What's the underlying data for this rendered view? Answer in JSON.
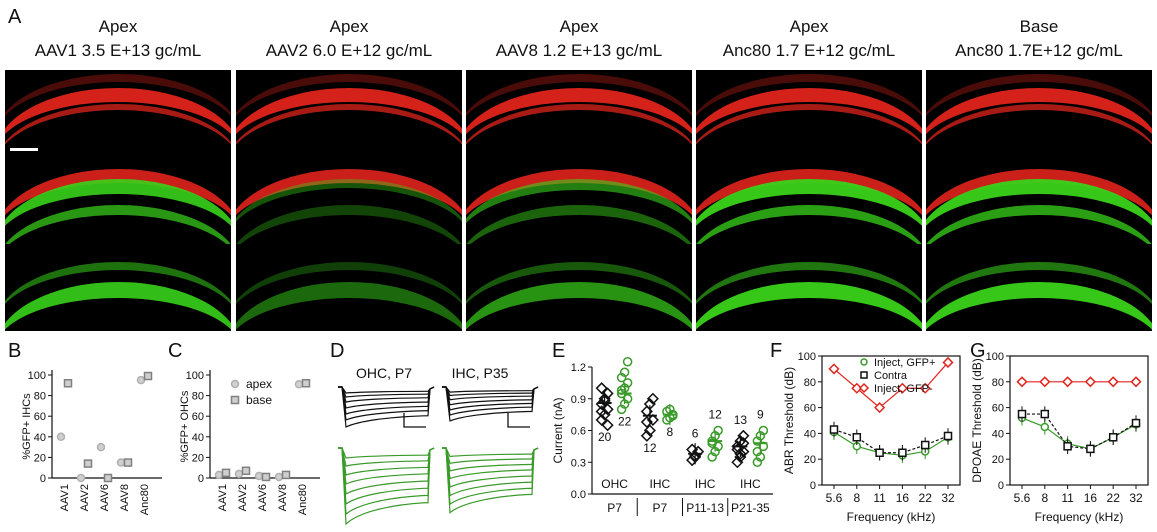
{
  "figure": {
    "panel_letters": {
      "A": "A",
      "B": "B",
      "C": "C",
      "D": "D",
      "E": "E",
      "F": "F",
      "G": "G"
    },
    "panel_a": {
      "columns": [
        {
          "title": "Apex",
          "subtitle": "AAV1 3.5 E+13 gc/mL"
        },
        {
          "title": "Apex",
          "subtitle": "AAV2 6.0 E+12 gc/mL"
        },
        {
          "title": "Apex",
          "subtitle": "AAV8 1.2 E+13 gc/mL"
        },
        {
          "title": "Apex",
          "subtitle": "Anc80 1.7 E+12 gc/mL"
        },
        {
          "title": "Base",
          "subtitle": "Anc80 1.7E+12 gc/mL"
        }
      ],
      "colors": {
        "red": "#e0241c",
        "green": "#39d21b",
        "background": "#000000"
      }
    }
  },
  "chart_data": [
    {
      "panel": "B",
      "type": "scatter",
      "ylabel": "%GFP+ IHCs",
      "ylim": [
        0,
        100
      ],
      "yticks": [
        "0",
        "20",
        "40",
        "60",
        "80",
        "100"
      ],
      "categories": [
        "AAV1",
        "AAV2",
        "AAV6",
        "AAV8",
        "Anc80"
      ],
      "series": [
        {
          "marker": "circle",
          "values": [
            40,
            0,
            30,
            15,
            95
          ]
        },
        {
          "marker": "square",
          "values": [
            92,
            14,
            0,
            15,
            99
          ]
        }
      ]
    },
    {
      "panel": "C",
      "type": "scatter",
      "ylabel": "%GFP+ OHCs",
      "ylim": [
        0,
        100
      ],
      "yticks": [
        "0",
        "20",
        "40",
        "60",
        "80",
        "100"
      ],
      "categories": [
        "AAV1",
        "AAV2",
        "AAV6",
        "AAV8",
        "Anc80"
      ],
      "legend": [
        "apex",
        "base"
      ],
      "series": [
        {
          "name": "apex",
          "marker": "circle",
          "values": [
            3,
            4,
            2,
            1,
            91
          ]
        },
        {
          "name": "base",
          "marker": "square",
          "values": [
            5,
            7,
            1,
            3,
            92
          ]
        }
      ]
    },
    {
      "panel": "D",
      "type": "line",
      "labels": [
        "OHC, P7",
        "IHC, P35"
      ],
      "colors": {
        "top": "#111111",
        "bottom": "#3a9a2a"
      }
    },
    {
      "panel": "E",
      "type": "scatter",
      "ylabel": "Current (nA)",
      "ylim": [
        0,
        1.2
      ],
      "yticks": [
        "0.0",
        "0.3",
        "0.6",
        "0.9",
        "1.2"
      ],
      "groups": [
        {
          "cell": "OHC",
          "age": "P7",
          "n": [
            "20",
            "22"
          ]
        },
        {
          "cell": "IHC",
          "age": "P7",
          "n": [
            "12",
            "8"
          ]
        },
        {
          "cell": "IHC",
          "age": "P11-13",
          "n": [
            "6",
            "12"
          ]
        },
        {
          "cell": "IHC",
          "age": "P21-35",
          "n": [
            "13",
            "9"
          ]
        }
      ],
      "series": [
        {
          "marker": "diamond",
          "color": "#111111",
          "means": [
            0.86,
            0.74,
            0.38,
            0.45
          ],
          "points": [
            [
              0.7,
              0.75,
              0.8,
              0.85,
              0.9,
              0.95,
              1.0,
              0.88,
              0.65,
              0.78
            ],
            [
              0.55,
              0.6,
              0.7,
              0.78,
              0.85,
              0.9,
              0.68
            ],
            [
              0.32,
              0.36,
              0.4,
              0.42,
              0.35
            ],
            [
              0.3,
              0.35,
              0.4,
              0.45,
              0.5,
              0.55,
              0.42,
              0.38,
              0.48
            ]
          ]
        },
        {
          "marker": "circle",
          "color": "#3a9a2a",
          "means": [
            0.95,
            0.75,
            0.5,
            0.48
          ],
          "points": [
            [
              0.8,
              0.85,
              0.9,
              0.95,
              1.0,
              1.05,
              1.1,
              1.15,
              1.25,
              0.98
            ],
            [
              0.7,
              0.72,
              0.75,
              0.78,
              0.8,
              0.74
            ],
            [
              0.35,
              0.4,
              0.45,
              0.5,
              0.55,
              0.6,
              0.48
            ],
            [
              0.3,
              0.35,
              0.45,
              0.5,
              0.55,
              0.6,
              0.4
            ]
          ]
        }
      ]
    },
    {
      "panel": "F",
      "type": "line",
      "ylabel": "ABR Threshold (dB)",
      "xlabel": "Frequency (kHz)",
      "ylim": [
        0,
        100
      ],
      "yticks": [
        "0",
        "20",
        "40",
        "60",
        "80",
        "100"
      ],
      "x": [
        "5.6",
        "8",
        "11",
        "16",
        "22",
        "32"
      ],
      "series": [
        {
          "name": "Inject, GFP+",
          "marker": "circle",
          "color": "#3a9a2a",
          "values": [
            41,
            30,
            25,
            23,
            26,
            37
          ]
        },
        {
          "name": "Contra",
          "marker": "square",
          "color": "#111111",
          "values": [
            43,
            37,
            25,
            25,
            31,
            38
          ]
        },
        {
          "name": "Inject, GFP-",
          "marker": "diamond",
          "color": "#e0241c",
          "values": [
            90,
            75,
            60,
            75,
            75,
            95
          ]
        }
      ]
    },
    {
      "panel": "G",
      "type": "line",
      "ylabel": "DPOAE Threshold (dB)",
      "xlabel": "Frequency (kHz)",
      "ylim": [
        0,
        100
      ],
      "yticks": [
        "0",
        "20",
        "40",
        "60",
        "80",
        "100"
      ],
      "x": [
        "5.6",
        "8",
        "11",
        "16",
        "22",
        "32"
      ],
      "series": [
        {
          "marker": "circle",
          "color": "#3a9a2a",
          "values": [
            52,
            45,
            32,
            28,
            37,
            47
          ]
        },
        {
          "marker": "square",
          "color": "#111111",
          "values": [
            55,
            55,
            30,
            28,
            37,
            48
          ]
        },
        {
          "marker": "diamond",
          "color": "#e0241c",
          "values": [
            80,
            80,
            80,
            80,
            80,
            80
          ]
        }
      ]
    }
  ]
}
